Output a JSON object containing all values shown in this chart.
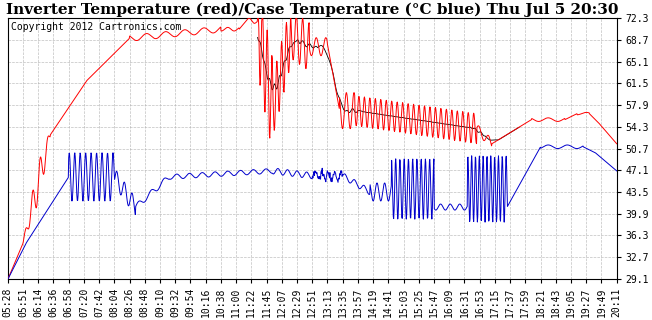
{
  "title": "Inverter Temperature (red)/Case Temperature (°C blue) Thu Jul 5 20:30",
  "copyright": "Copyright 2012 Cartronics.com",
  "ylabel_right": [
    "29.1",
    "32.7",
    "36.3",
    "39.9",
    "43.5",
    "47.1",
    "50.7",
    "54.3",
    "57.9",
    "61.5",
    "65.1",
    "68.7",
    "72.3"
  ],
  "ymin": 29.1,
  "ymax": 72.3,
  "bg_color": "#ffffff",
  "grid_color": "#b0b0b0",
  "red_color": "#ff0000",
  "blue_color": "#0000cc",
  "black_color": "#000000",
  "title_fontsize": 11,
  "copyright_fontsize": 7,
  "tick_fontsize": 7,
  "x_labels": [
    "05:28",
    "05:51",
    "06:14",
    "06:36",
    "06:58",
    "07:20",
    "07:42",
    "08:04",
    "08:26",
    "08:48",
    "09:10",
    "09:32",
    "09:54",
    "10:16",
    "10:38",
    "11:00",
    "11:22",
    "11:45",
    "12:07",
    "12:29",
    "12:51",
    "13:13",
    "13:35",
    "13:57",
    "14:19",
    "14:41",
    "15:03",
    "15:25",
    "15:47",
    "16:09",
    "16:31",
    "16:53",
    "17:15",
    "17:37",
    "17:59",
    "18:21",
    "18:43",
    "19:05",
    "19:27",
    "19:49",
    "20:11"
  ]
}
